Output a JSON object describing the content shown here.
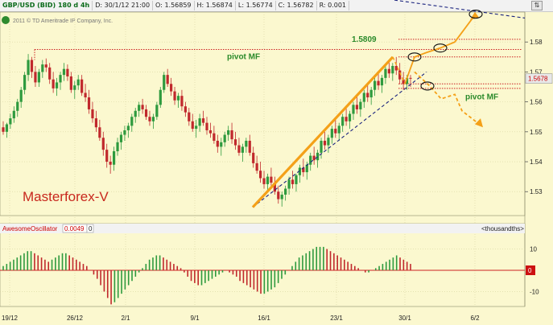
{
  "header": {
    "symbol": "GBP/USD (BID) 180 d 4h",
    "date": "D: 30/1/12 21:00",
    "open": "O: 1.56859",
    "high": "H: 1.56874",
    "low": "L: 1.56774",
    "close": "C: 1.56782",
    "range": "R: 0.001"
  },
  "window_icons": [
    "resize-icon",
    "close-icon"
  ],
  "watermark": "2011 © TD Ameritrade IP Company, Inc.",
  "brand_label": "Masterforex-V",
  "colors": {
    "bg": "#fbf8cf",
    "bull": "#2e9a3e",
    "bear": "#c0282c",
    "pivot": "#cc2222",
    "trend": "#f4a018",
    "dashed": "#1a237e",
    "label_green": "#2a8a2a"
  },
  "chart_data": [
    {
      "type": "candlestick",
      "title": "GBP/USD (BID) 180 d 4h",
      "x_ticks": [
        "19/12",
        "26/12",
        "2/1",
        "9/1",
        "16/1",
        "23/1",
        "30/1",
        "6/2"
      ],
      "y_ticks": [
        "1.53",
        "1.54",
        "1.55",
        "1.56",
        "1.57",
        "1.58"
      ],
      "ylim": [
        1.522,
        1.59
      ],
      "current_price": "1.5678",
      "grid": true,
      "annotations": [
        {
          "text": "1.5809",
          "kind": "level",
          "value": 1.5809
        },
        {
          "text": "pivot MF",
          "kind": "level",
          "value": 1.5775
        },
        {
          "text": "pivot MF",
          "kind": "level",
          "value": 1.564
        }
      ],
      "pivot_levels": [
        1.5809,
        1.5775,
        1.575,
        1.566,
        1.5645
      ],
      "ohlc": [
        [
          1.5515,
          1.5535,
          1.549,
          1.55
        ],
        [
          1.55,
          1.553,
          1.548,
          1.5525
        ],
        [
          1.5525,
          1.556,
          1.551,
          1.5545
        ],
        [
          1.5545,
          1.5585,
          1.553,
          1.557
        ],
        [
          1.557,
          1.561,
          1.555,
          1.56
        ],
        [
          1.56,
          1.565,
          1.558,
          1.564
        ],
        [
          1.564,
          1.57,
          1.5625,
          1.569
        ],
        [
          1.569,
          1.576,
          1.567,
          1.574
        ],
        [
          1.574,
          1.575,
          1.568,
          1.57
        ],
        [
          1.57,
          1.572,
          1.565,
          1.5665
        ],
        [
          1.5665,
          1.571,
          1.565,
          1.57
        ],
        [
          1.57,
          1.574,
          1.568,
          1.5725
        ],
        [
          1.5725,
          1.5745,
          1.57,
          1.5715
        ],
        [
          1.5715,
          1.573,
          1.566,
          1.5675
        ],
        [
          1.5675,
          1.57,
          1.563,
          1.5645
        ],
        [
          1.5645,
          1.568,
          1.562,
          1.5665
        ],
        [
          1.5665,
          1.57,
          1.564,
          1.569
        ],
        [
          1.569,
          1.573,
          1.567,
          1.571
        ],
        [
          1.571,
          1.5725,
          1.567,
          1.5685
        ],
        [
          1.5685,
          1.57,
          1.563,
          1.564
        ],
        [
          1.564,
          1.567,
          1.561,
          1.5655
        ],
        [
          1.5655,
          1.569,
          1.564,
          1.5675
        ],
        [
          1.5675,
          1.569,
          1.562,
          1.563
        ],
        [
          1.563,
          1.566,
          1.56,
          1.5615
        ],
        [
          1.5615,
          1.564,
          1.556,
          1.5575
        ],
        [
          1.5575,
          1.56,
          1.553,
          1.5545
        ],
        [
          1.5545,
          1.557,
          1.55,
          1.5515
        ],
        [
          1.5515,
          1.554,
          1.547,
          1.548
        ],
        [
          1.548,
          1.55,
          1.542,
          1.544
        ],
        [
          1.544,
          1.546,
          1.538,
          1.54
        ],
        [
          1.54,
          1.542,
          1.536,
          1.539
        ],
        [
          1.539,
          1.545,
          1.537,
          1.5435
        ],
        [
          1.5435,
          1.548,
          1.542,
          1.5465
        ],
        [
          1.5465,
          1.55,
          1.544,
          1.549
        ],
        [
          1.549,
          1.552,
          1.547,
          1.5505
        ],
        [
          1.5505,
          1.553,
          1.548,
          1.552
        ],
        [
          1.552,
          1.556,
          1.55,
          1.555
        ],
        [
          1.555,
          1.558,
          1.553,
          1.557
        ],
        [
          1.557,
          1.56,
          1.555,
          1.559
        ],
        [
          1.559,
          1.561,
          1.556,
          1.5575
        ],
        [
          1.5575,
          1.559,
          1.554,
          1.555
        ],
        [
          1.555,
          1.557,
          1.552,
          1.5535
        ],
        [
          1.5535,
          1.556,
          1.551,
          1.555
        ],
        [
          1.555,
          1.56,
          1.554,
          1.559
        ],
        [
          1.559,
          1.565,
          1.558,
          1.564
        ],
        [
          1.564,
          1.57,
          1.563,
          1.569
        ],
        [
          1.569,
          1.571,
          1.565,
          1.566
        ],
        [
          1.566,
          1.568,
          1.562,
          1.5635
        ],
        [
          1.5635,
          1.565,
          1.559,
          1.5605
        ],
        [
          1.5605,
          1.563,
          1.558,
          1.562
        ],
        [
          1.562,
          1.564,
          1.557,
          1.5585
        ],
        [
          1.5585,
          1.56,
          1.555,
          1.5565
        ],
        [
          1.5565,
          1.558,
          1.552,
          1.5535
        ],
        [
          1.5535,
          1.556,
          1.55,
          1.551
        ],
        [
          1.551,
          1.554,
          1.548,
          1.552
        ],
        [
          1.552,
          1.556,
          1.55,
          1.5545
        ],
        [
          1.5545,
          1.557,
          1.552,
          1.553
        ],
        [
          1.553,
          1.555,
          1.549,
          1.5505
        ],
        [
          1.5505,
          1.553,
          1.548,
          1.5495
        ],
        [
          1.5495,
          1.552,
          1.546,
          1.547
        ],
        [
          1.547,
          1.549,
          1.543,
          1.545
        ],
        [
          1.545,
          1.548,
          1.542,
          1.5465
        ],
        [
          1.5465,
          1.55,
          1.545,
          1.549
        ],
        [
          1.549,
          1.552,
          1.547,
          1.5505
        ],
        [
          1.5505,
          1.553,
          1.546,
          1.5475
        ],
        [
          1.5475,
          1.55,
          1.544,
          1.5455
        ],
        [
          1.5455,
          1.548,
          1.542,
          1.543
        ],
        [
          1.543,
          1.546,
          1.54,
          1.545
        ],
        [
          1.545,
          1.548,
          1.543,
          1.547
        ],
        [
          1.547,
          1.549,
          1.542,
          1.543
        ],
        [
          1.543,
          1.545,
          1.538,
          1.5395
        ],
        [
          1.5395,
          1.542,
          1.536,
          1.537
        ],
        [
          1.537,
          1.54,
          1.533,
          1.5345
        ],
        [
          1.5345,
          1.537,
          1.531,
          1.5325
        ],
        [
          1.5325,
          1.536,
          1.53,
          1.535
        ],
        [
          1.535,
          1.538,
          1.532,
          1.533
        ],
        [
          1.533,
          1.535,
          1.529,
          1.53
        ],
        [
          1.53,
          1.532,
          1.526,
          1.5275
        ],
        [
          1.5275,
          1.53,
          1.525,
          1.529
        ],
        [
          1.529,
          1.532,
          1.527,
          1.531
        ],
        [
          1.531,
          1.535,
          1.529,
          1.534
        ],
        [
          1.534,
          1.537,
          1.531,
          1.5325
        ],
        [
          1.5325,
          1.536,
          1.53,
          1.5355
        ],
        [
          1.5355,
          1.539,
          1.533,
          1.538
        ],
        [
          1.538,
          1.541,
          1.535,
          1.5365
        ],
        [
          1.5365,
          1.54,
          1.534,
          1.539
        ],
        [
          1.539,
          1.543,
          1.537,
          1.542
        ],
        [
          1.542,
          1.545,
          1.539,
          1.5405
        ],
        [
          1.5405,
          1.544,
          1.538,
          1.543
        ],
        [
          1.543,
          1.548,
          1.541,
          1.547
        ],
        [
          1.547,
          1.55,
          1.544,
          1.5455
        ],
        [
          1.5455,
          1.549,
          1.543,
          1.548
        ],
        [
          1.548,
          1.552,
          1.546,
          1.551
        ],
        [
          1.551,
          1.554,
          1.548,
          1.5495
        ],
        [
          1.5495,
          1.553,
          1.547,
          1.552
        ],
        [
          1.552,
          1.556,
          1.55,
          1.555
        ],
        [
          1.555,
          1.558,
          1.552,
          1.5535
        ],
        [
          1.5535,
          1.557,
          1.551,
          1.556
        ],
        [
          1.556,
          1.56,
          1.554,
          1.559
        ],
        [
          1.559,
          1.562,
          1.556,
          1.5575
        ],
        [
          1.5575,
          1.561,
          1.555,
          1.56
        ],
        [
          1.56,
          1.564,
          1.558,
          1.563
        ],
        [
          1.563,
          1.566,
          1.56,
          1.5615
        ],
        [
          1.5615,
          1.565,
          1.559,
          1.564
        ],
        [
          1.564,
          1.568,
          1.562,
          1.567
        ],
        [
          1.567,
          1.57,
          1.564,
          1.5655
        ],
        [
          1.5655,
          1.569,
          1.563,
          1.568
        ],
        [
          1.568,
          1.572,
          1.566,
          1.571
        ],
        [
          1.571,
          1.574,
          1.568,
          1.5695
        ],
        [
          1.5695,
          1.573,
          1.567,
          1.572
        ],
        [
          1.572,
          1.575,
          1.569,
          1.5705
        ],
        [
          1.5705,
          1.573,
          1.566,
          1.5675
        ],
        [
          1.5675,
          1.57,
          1.564,
          1.566
        ],
        [
          1.566,
          1.569,
          1.564,
          1.568
        ],
        [
          1.568,
          1.569,
          1.565,
          1.5678
        ]
      ],
      "trend_line": [
        [
          1.5248,
          1.575
        ],
        "orange solid"
      ],
      "lower_dashed_line": [
        1.5248,
        1.57
      ],
      "upper_dashed_line": "from 1.5940 to 1.5880 toward the right edge",
      "projection_up": [
        1.575,
        1.5765,
        1.578,
        1.589
      ],
      "projection_down": [
        1.565,
        1.561,
        1.5615,
        1.557,
        1.552
      ]
    },
    {
      "type": "bar",
      "title": "AwesomeOscillator",
      "value_label": "0.0049",
      "value_box": "0",
      "units_label": "<thousandths>",
      "y_ticks": [
        "10",
        "-10"
      ],
      "zero_marker": "0",
      "ylim": [
        -17,
        17
      ],
      "values": [
        2,
        3,
        4,
        5,
        6,
        7,
        8,
        9,
        9,
        8,
        7,
        6,
        5,
        4,
        5,
        6,
        7,
        8,
        8,
        7,
        6,
        5,
        4,
        3,
        2,
        0,
        -2,
        -4,
        -7,
        -10,
        -13,
        -16,
        -15,
        -13,
        -11,
        -9,
        -7,
        -5,
        -3,
        -1,
        1,
        3,
        5,
        6,
        7,
        7,
        6,
        5,
        4,
        3,
        2,
        1,
        -1,
        -3,
        -5,
        -6,
        -7,
        -7,
        -6,
        -5,
        -4,
        -3,
        -2,
        -1,
        0,
        -1,
        -2,
        -3,
        -5,
        -6,
        -7,
        -8,
        -9,
        -10,
        -11,
        -11,
        -10,
        -9,
        -8,
        -6,
        -4,
        -2,
        0,
        2,
        4,
        6,
        7,
        8,
        9,
        10,
        11,
        11,
        11,
        10,
        9,
        8,
        7,
        6,
        5,
        4,
        3,
        2,
        1,
        0,
        -1,
        -1,
        0,
        1,
        2,
        3,
        4,
        5,
        6,
        7,
        6,
        5,
        4,
        3
      ]
    }
  ]
}
